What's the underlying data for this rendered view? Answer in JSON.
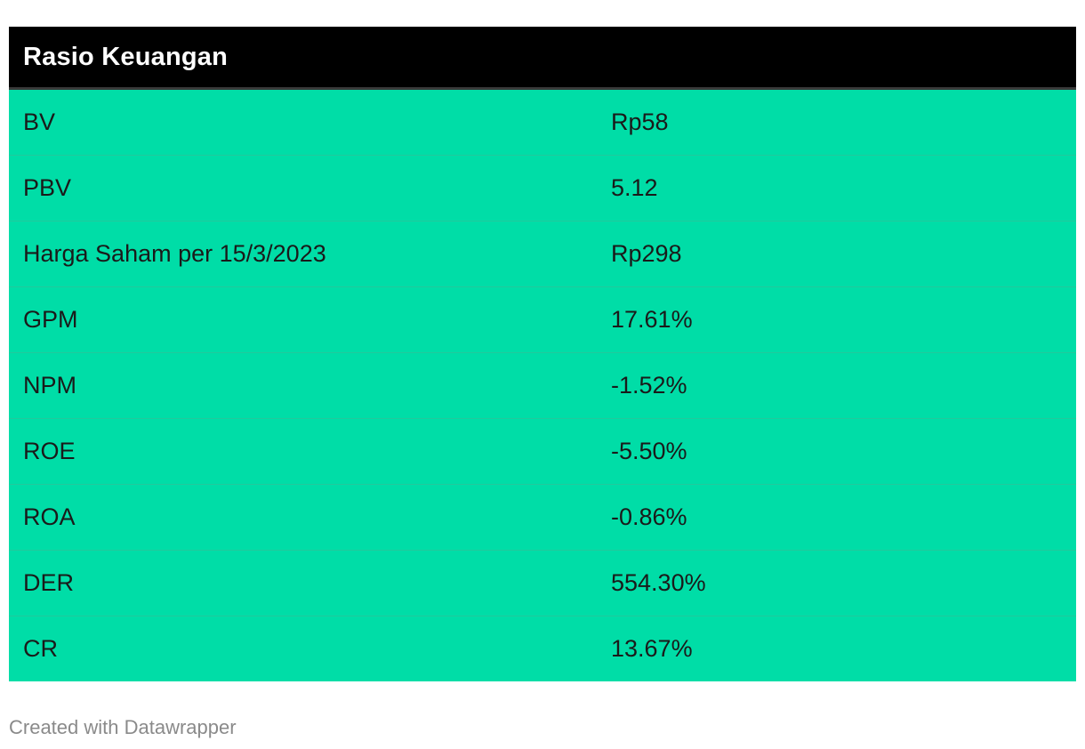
{
  "chart_data": {
    "type": "table",
    "title": "Rasio Keuangan",
    "rows": [
      {
        "label": "BV",
        "value": "Rp58"
      },
      {
        "label": "PBV",
        "value": "5.12"
      },
      {
        "label": "Harga Saham per 15/3/2023",
        "value": "Rp298"
      },
      {
        "label": "GPM",
        "value": "17.61%"
      },
      {
        "label": "NPM",
        "value": "-1.52%"
      },
      {
        "label": "ROE",
        "value": "-5.50%"
      },
      {
        "label": "ROA",
        "value": "-0.86%"
      },
      {
        "label": "DER",
        "value": "554.30%"
      },
      {
        "label": "CR",
        "value": "13.67%"
      }
    ]
  },
  "footer": {
    "credit": "Created with Datawrapper"
  },
  "colors": {
    "header_bg": "#000000",
    "header_text": "#ffffff",
    "row_bg": "#00dda7",
    "text": "#1a1a1a",
    "footer_text": "#8a8a8a"
  }
}
